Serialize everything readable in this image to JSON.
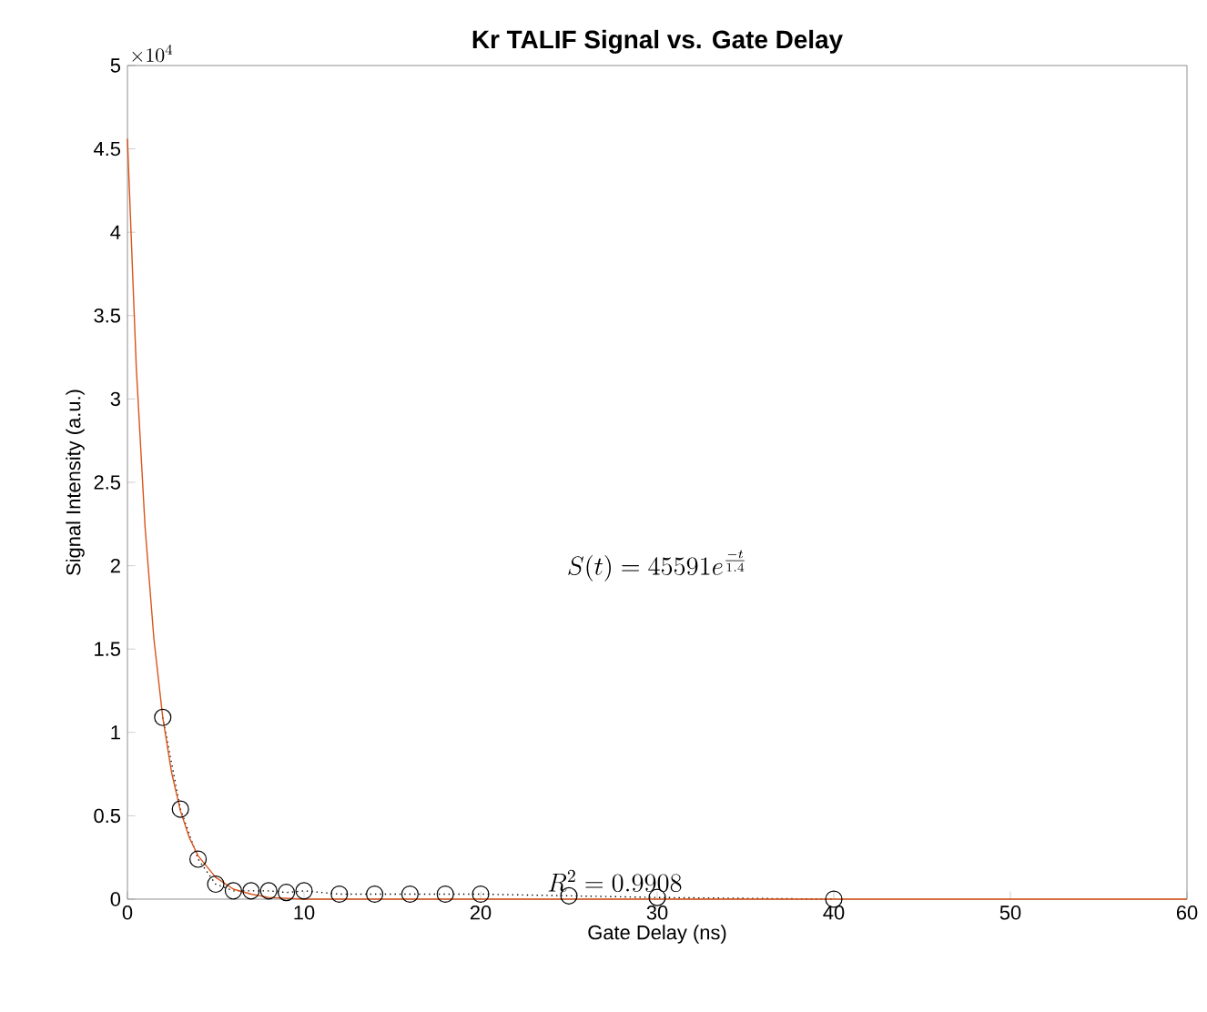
{
  "chart_data": {
    "type": "line",
    "title": "Kr TALIF Signal vs. Gate Delay",
    "xlabel": "Gate Delay (ns)",
    "ylabel": "Signal Intensity (a.u.)",
    "xlim": [
      0,
      60
    ],
    "ylim": [
      0,
      5
    ],
    "xticks": [
      0,
      10,
      20,
      30,
      40,
      50,
      60
    ],
    "yticks": [
      0,
      0.5,
      1,
      1.5,
      2,
      2.5,
      3,
      3.5,
      4,
      4.5,
      5
    ],
    "marker": "circle",
    "line_style": "dotted",
    "grid": false,
    "series": [
      {
        "color": "#000000",
        "x": [
          2,
          3,
          4,
          5,
          6,
          7,
          8,
          9,
          10,
          12,
          14,
          16,
          18,
          20,
          25,
          30,
          40
        ],
        "values": [
          1.09,
          0.54,
          0.24,
          0.09,
          0.05,
          0.05,
          0.05,
          0.04,
          0.05,
          0.03,
          0.03,
          0.03,
          0.03,
          0.03,
          0.02,
          0.01,
          0
        ]
      },
      {
        "type": "line",
        "color": "#d95319",
        "marker": "none",
        "line_style": "solid",
        "x": [
          0,
          0.5,
          1,
          1.5,
          2,
          2.5,
          3,
          3.5,
          4,
          5,
          6,
          7,
          8,
          10,
          12,
          15,
          20,
          30,
          60
        ],
        "values": [
          4.56,
          3.19,
          2.23,
          1.56,
          1.09,
          0.76,
          0.53,
          0.37,
          0.26,
          0.13,
          0.06,
          0.03,
          0.01,
          0,
          0,
          0,
          0,
          0,
          0
        ]
      }
    ],
    "annotations": [
      "\\times 10^{4}",
      "S(t) = 45591e^{\\frac{-t}{1.4}}",
      "R^2 = 0.9908"
    ]
  }
}
